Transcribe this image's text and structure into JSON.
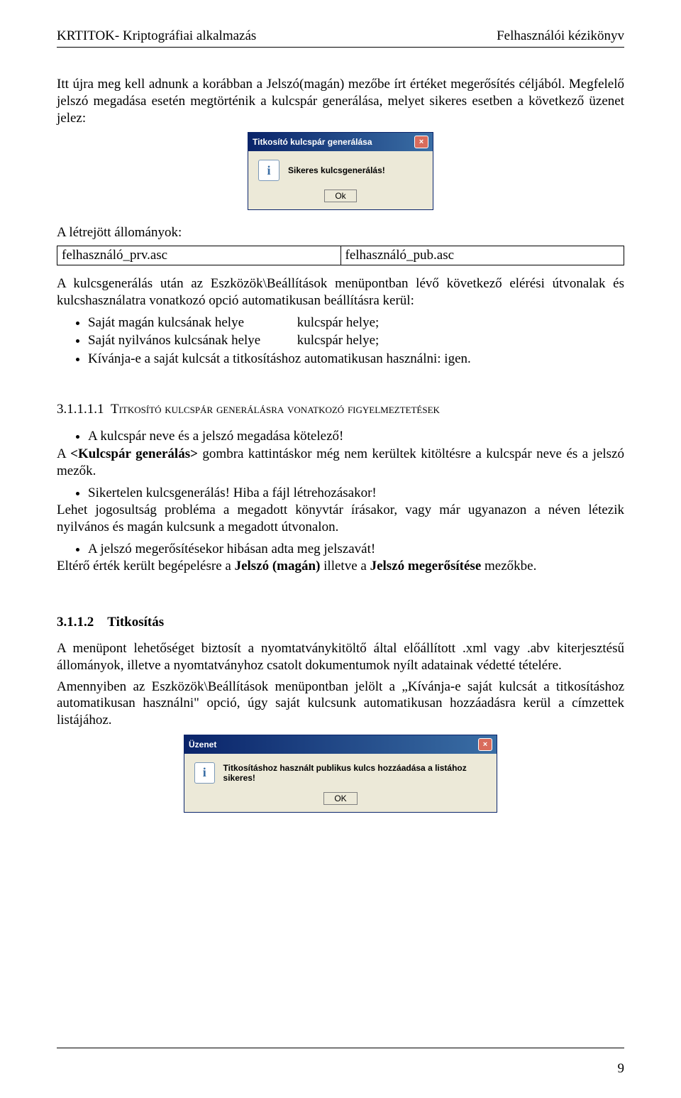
{
  "header": {
    "left": "KRTITOK- Kriptográfiai alkalmazás",
    "right": "Felhasználói kézikönyv"
  },
  "p1": "Itt újra meg kell adnunk a korábban a Jelszó(magán) mezőbe írt értéket megerősítés céljából. Megfelelő jelszó megadása esetén megtörténik a kulcspár generálása, melyet sikeres esetben a következő üzenet jelez:",
  "dialog1": {
    "title": "Titkosító kulcspár generálása",
    "message": "Sikeres kulcsgenerálás!",
    "ok": "Ok"
  },
  "p_files_intro": "A létrejött állományok:",
  "files": {
    "left": "felhasználó_prv.asc",
    "right": "felhasználó_pub.asc"
  },
  "p2": "A kulcsgenerálás után az Eszközök\\Beállítások menüpontban lévő következő elérési útvonalak és kulcshasználatra vonatkozó opció automatikusan beállításra kerül:",
  "bullets1": [
    {
      "col1": "Saját magán kulcsának helye",
      "col2": "kulcspár helye;"
    },
    {
      "col1": "Saját nyilvános kulcsának helye",
      "col2": "kulcspár helye;"
    },
    {
      "col1": "Kívánja-e a saját kulcsát a titkosításhoz automatikusan használni: igen.",
      "col2": ""
    }
  ],
  "h_31111_num": "3.1.1.1.1",
  "h_31111_txt": "Titkosító kulcspár generálásra vonatkozó figyelmeztetések",
  "b_warn1": "A kulcspár neve és a jelszó megadása kötelező!",
  "p_warn1_pre": "A ",
  "p_warn1_bold": "<Kulcspár generálás>",
  "p_warn1_post": " gombra kattintáskor még nem kerültek kitöltésre a kulcspár neve és a jelszó mezők.",
  "b_warn2": "Sikertelen kulcsgenerálás! Hiba a fájl létrehozásakor!",
  "p_warn2": "Lehet jogosultság probléma a megadott könyvtár írásakor, vagy már ugyanazon a néven létezik nyilvános és magán kulcsunk a megadott útvonalon.",
  "b_warn3": "A jelszó megerősítésekor hibásan adta meg jelszavát!",
  "p_warn3_pre": "Eltérő érték került begépelésre a ",
  "p_warn3_b1": "Jelszó (magán)",
  "p_warn3_mid": " illetve a ",
  "p_warn3_b2": "Jelszó megerősítése",
  "p_warn3_post": " mezőkbe.",
  "h_3112": "3.1.1.2 Titkosítás",
  "p3": "A menüpont lehetőséget biztosít a nyomtatványkitöltő által előállított .xml vagy .abv kiterjesztésű állományok, illetve a nyomtatványhoz csatolt dokumentumok nyílt adatainak védetté tételére.",
  "p4": "Amennyiben az Eszközök\\Beállítások menüpontban jelölt a „Kívánja-e saját kulcsát a titkosításhoz automatikusan használni\" opció, úgy saját kulcsunk automatikusan hozzáadásra kerül a címzettek listájához.",
  "dialog2": {
    "title": "Üzenet",
    "message": "Titkosításhoz használt publikus kulcs hozzáadása a listához sikeres!",
    "ok": "OK"
  },
  "pagenum": "9"
}
